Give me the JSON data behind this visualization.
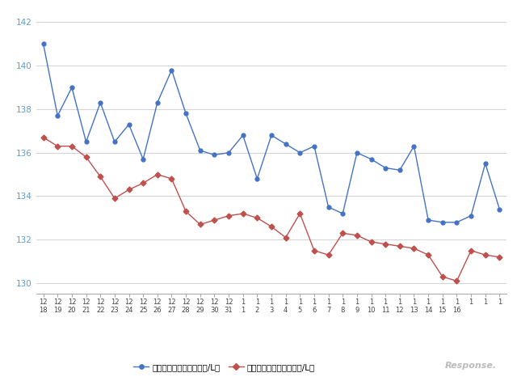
{
  "blue_values": [
    141.0,
    137.7,
    139.0,
    136.5,
    138.3,
    136.5,
    137.3,
    135.7,
    138.3,
    139.8,
    137.8,
    136.1,
    135.9,
    136.0,
    136.8,
    134.8,
    136.8,
    136.4,
    136.0,
    136.3,
    133.5,
    133.2,
    136.0,
    135.7,
    135.3,
    135.2,
    136.3,
    132.9,
    132.8,
    132.8,
    133.1,
    135.5,
    133.4
  ],
  "red_values": [
    136.7,
    136.3,
    136.3,
    135.8,
    134.9,
    133.9,
    134.3,
    134.6,
    135.0,
    134.8,
    133.3,
    132.7,
    132.9,
    133.1,
    133.2,
    133.0,
    132.6,
    132.1,
    133.2,
    131.5,
    131.3,
    132.3,
    132.2,
    131.9,
    131.8,
    131.7,
    131.6,
    131.3,
    130.3,
    130.1,
    131.5,
    131.3,
    131.2
  ],
  "xlabels_top": [
    "12",
    "12",
    "12",
    "12",
    "12",
    "12",
    "12",
    "12",
    "12",
    "12",
    "12",
    "12",
    "12",
    "12",
    "1",
    "1",
    "1",
    "1",
    "1",
    "1",
    "1",
    "1",
    "1",
    "1",
    "1",
    "1",
    "1",
    "1",
    "1",
    "1",
    "1",
    "1",
    "1"
  ],
  "xlabels_bottom": [
    "18",
    "19",
    "20",
    "21",
    "22",
    "23",
    "24",
    "25",
    "26",
    "27",
    "28",
    "29",
    "30",
    "31",
    "1",
    "2",
    "3",
    "4",
    "5",
    "6",
    "7",
    "8",
    "9",
    "10",
    "11",
    "12",
    "13",
    "14",
    "15",
    "16",
    "",
    "",
    ""
  ],
  "yticks": [
    130,
    132,
    134,
    136,
    138,
    140,
    142
  ],
  "ylim": [
    129.5,
    142.5
  ],
  "blue_color": "#4472C4",
  "red_color": "#C0504D",
  "blue_label": "レギュラー看板価格（円/L）",
  "red_label": "レギュラー実売価格（円/L）",
  "background_color": "#ffffff",
  "grid_color": "#cccccc",
  "ytick_color": "#5b9bd5",
  "xtick_color": "#444444",
  "n_points": 33
}
